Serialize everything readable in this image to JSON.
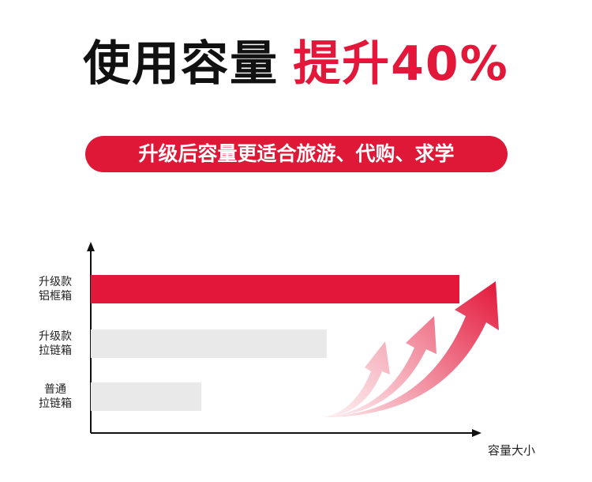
{
  "headline": {
    "text": "使用容量",
    "highlight": "提升40%"
  },
  "banner": "升级后容量更适合旅游、代购、求学",
  "chart_data": {
    "type": "bar",
    "orientation": "horizontal",
    "categories": [
      "升级款\n铝框箱",
      "升级款\n拉链箱",
      "普通\n拉链箱"
    ],
    "values": [
      100,
      64,
      30
    ],
    "colors": [
      "#e3173a",
      "#e9e9e9",
      "#e9e9e9"
    ],
    "x_label": "容量大小"
  }
}
